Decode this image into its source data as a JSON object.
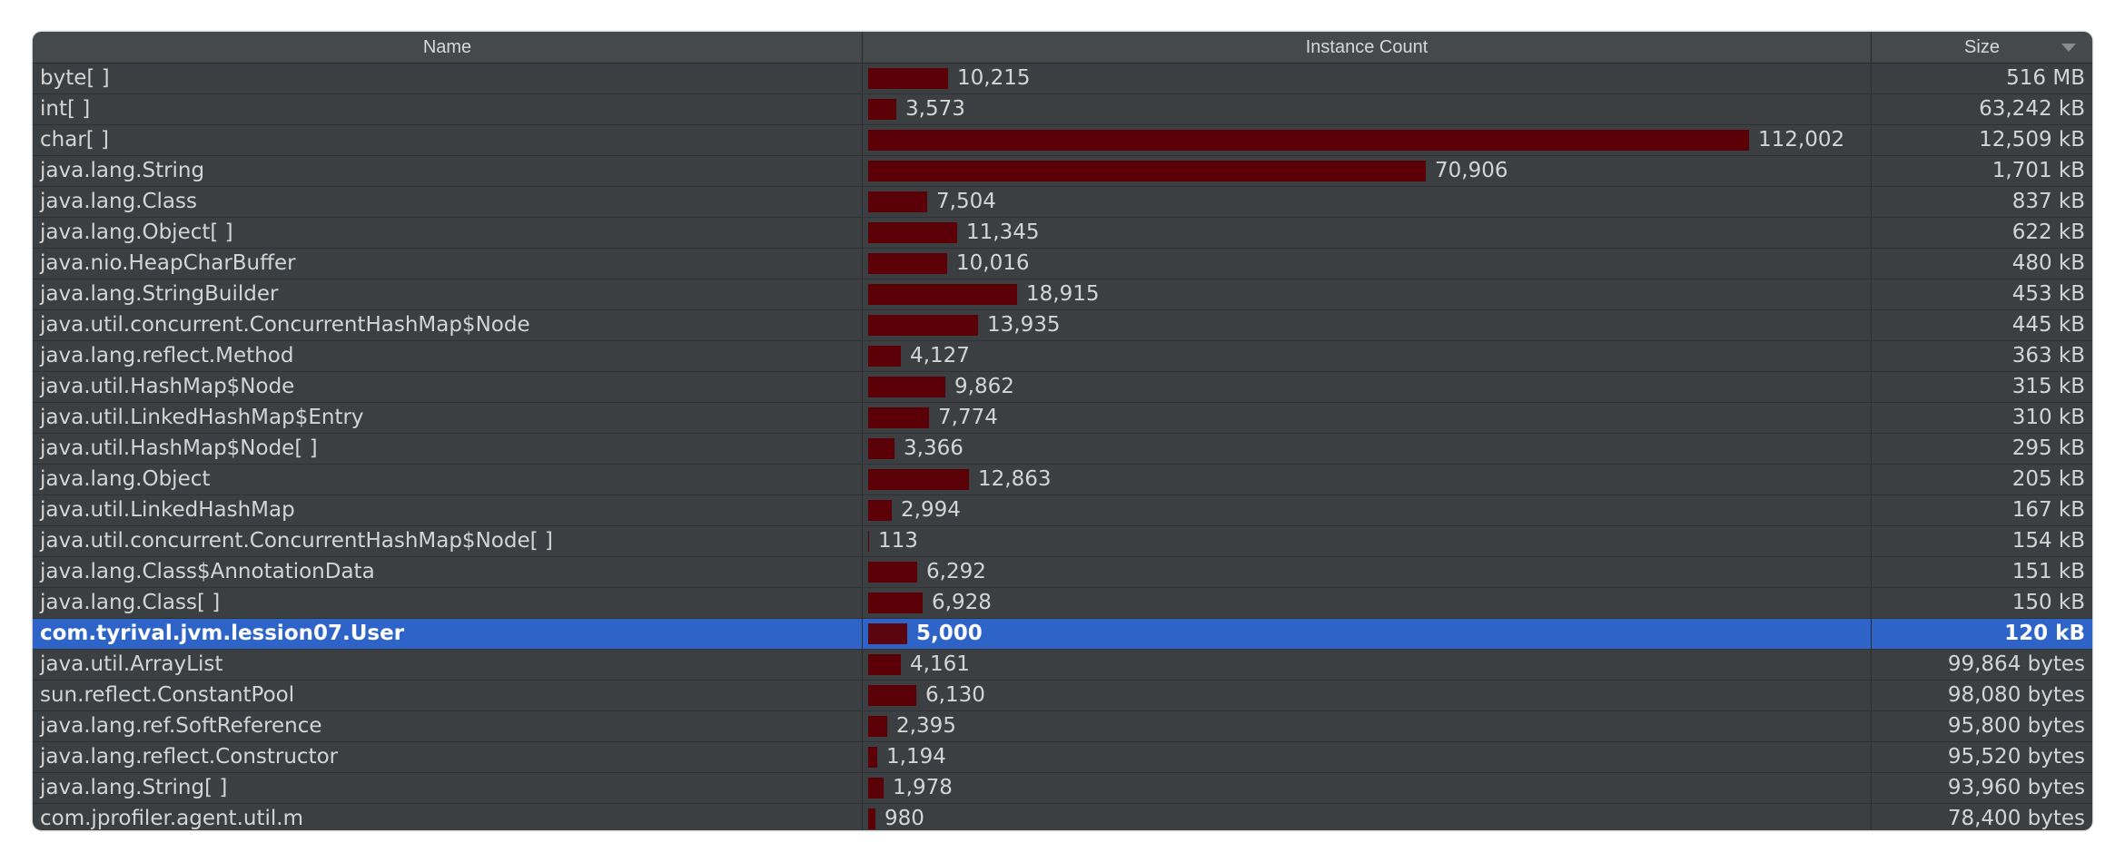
{
  "header": {
    "name_label": "Name",
    "count_label": "Instance Count",
    "size_label": "Size",
    "sort_icon": "sort-descending-icon"
  },
  "max_count": 112002,
  "colors": {
    "bar": "#5c0007",
    "selected_row": "#2e64c8",
    "background": "#3c3f41"
  },
  "rows": [
    {
      "name": "byte[ ]",
      "count": 10215,
      "count_label": "10,215",
      "size": "516 MB"
    },
    {
      "name": "int[ ]",
      "count": 3573,
      "count_label": "3,573",
      "size": "63,242 kB"
    },
    {
      "name": "char[ ]",
      "count": 112002,
      "count_label": "112,002",
      "size": "12,509 kB"
    },
    {
      "name": "java.lang.String",
      "count": 70906,
      "count_label": "70,906",
      "size": "1,701 kB"
    },
    {
      "name": "java.lang.Class",
      "count": 7504,
      "count_label": "7,504",
      "size": "837 kB"
    },
    {
      "name": "java.lang.Object[ ]",
      "count": 11345,
      "count_label": "11,345",
      "size": "622 kB"
    },
    {
      "name": "java.nio.HeapCharBuffer",
      "count": 10016,
      "count_label": "10,016",
      "size": "480 kB"
    },
    {
      "name": "java.lang.StringBuilder",
      "count": 18915,
      "count_label": "18,915",
      "size": "453 kB"
    },
    {
      "name": "java.util.concurrent.ConcurrentHashMap$Node",
      "count": 13935,
      "count_label": "13,935",
      "size": "445 kB"
    },
    {
      "name": "java.lang.reflect.Method",
      "count": 4127,
      "count_label": "4,127",
      "size": "363 kB"
    },
    {
      "name": "java.util.HashMap$Node",
      "count": 9862,
      "count_label": "9,862",
      "size": "315 kB"
    },
    {
      "name": "java.util.LinkedHashMap$Entry",
      "count": 7774,
      "count_label": "7,774",
      "size": "310 kB"
    },
    {
      "name": "java.util.HashMap$Node[ ]",
      "count": 3366,
      "count_label": "3,366",
      "size": "295 kB"
    },
    {
      "name": "java.lang.Object",
      "count": 12863,
      "count_label": "12,863",
      "size": "205 kB"
    },
    {
      "name": "java.util.LinkedHashMap",
      "count": 2994,
      "count_label": "2,994",
      "size": "167 kB"
    },
    {
      "name": "java.util.concurrent.ConcurrentHashMap$Node[ ]",
      "count": 113,
      "count_label": "113",
      "size": "154 kB"
    },
    {
      "name": "java.lang.Class$AnnotationData",
      "count": 6292,
      "count_label": "6,292",
      "size": "151 kB"
    },
    {
      "name": "java.lang.Class[ ]",
      "count": 6928,
      "count_label": "6,928",
      "size": "150 kB"
    },
    {
      "name": "com.tyrival.jvm.lession07.User",
      "count": 5000,
      "count_label": "5,000",
      "size": "120 kB",
      "selected": true
    },
    {
      "name": "java.util.ArrayList",
      "count": 4161,
      "count_label": "4,161",
      "size": "99,864 bytes"
    },
    {
      "name": "sun.reflect.ConstantPool",
      "count": 6130,
      "count_label": "6,130",
      "size": "98,080 bytes"
    },
    {
      "name": "java.lang.ref.SoftReference",
      "count": 2395,
      "count_label": "2,395",
      "size": "95,800 bytes"
    },
    {
      "name": "java.lang.reflect.Constructor",
      "count": 1194,
      "count_label": "1,194",
      "size": "95,520 bytes"
    },
    {
      "name": "java.lang.String[ ]",
      "count": 1978,
      "count_label": "1,978",
      "size": "93,960 bytes"
    },
    {
      "name": "com.jprofiler.agent.util.m",
      "count": 980,
      "count_label": "980",
      "size": "78,400 bytes"
    }
  ]
}
